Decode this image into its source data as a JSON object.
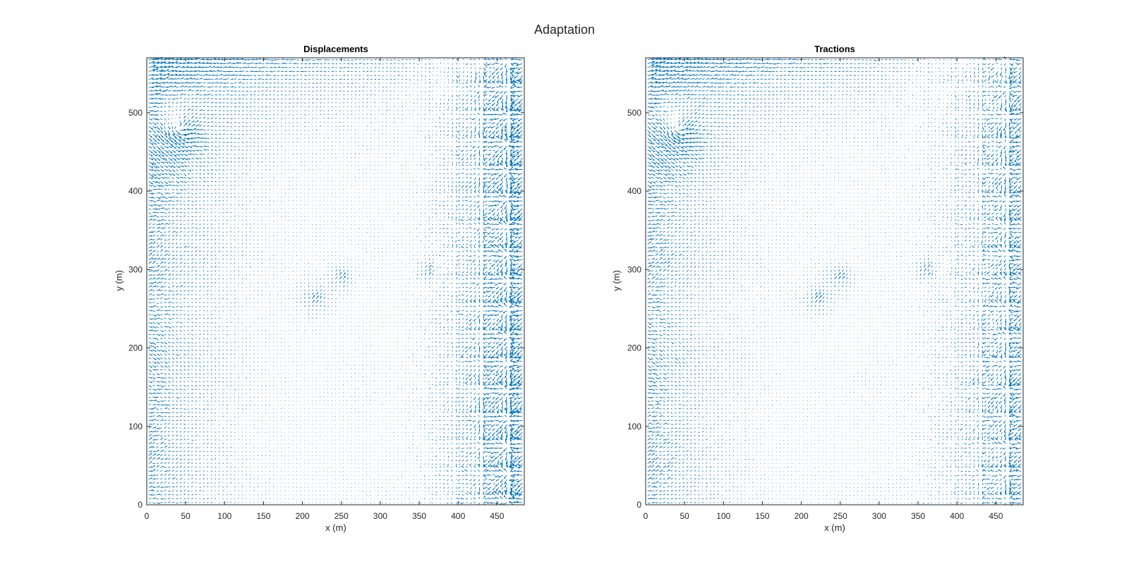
{
  "figure": {
    "title": "Adaptation"
  },
  "chart_data": [
    {
      "type": "quiver",
      "title": "Displacements",
      "xlabel": "x (m)",
      "ylabel": "y (m)",
      "xlim": [
        0,
        485
      ],
      "ylim": [
        0,
        570
      ],
      "xticks": [
        0,
        50,
        100,
        150,
        200,
        250,
        300,
        350,
        400,
        450
      ],
      "yticks": [
        0,
        100,
        200,
        300,
        400,
        500
      ],
      "grid": false,
      "color": "#0072BD",
      "grid_spacing": 5,
      "features": [
        {
          "kind": "left_band_flow"
        },
        {
          "kind": "top_band_flow"
        },
        {
          "kind": "right_region_radial_clusters"
        },
        {
          "kind": "vortex",
          "center": [
            40,
            480
          ]
        },
        {
          "kind": "cluster",
          "center": [
            250,
            290
          ]
        },
        {
          "kind": "cluster",
          "center": [
            215,
            262
          ]
        },
        {
          "kind": "cluster",
          "center": [
            360,
            300
          ]
        }
      ]
    },
    {
      "type": "quiver",
      "title": "Tractions",
      "xlabel": "x (m)",
      "ylabel": "y (m)",
      "xlim": [
        0,
        485
      ],
      "ylim": [
        0,
        570
      ],
      "xticks": [
        0,
        50,
        100,
        150,
        200,
        250,
        300,
        350,
        400,
        450
      ],
      "yticks": [
        0,
        100,
        200,
        300,
        400,
        500
      ],
      "grid": false,
      "color": "#0072BD",
      "grid_spacing": 5,
      "features": [
        {
          "kind": "left_band_flow"
        },
        {
          "kind": "top_band_flow"
        },
        {
          "kind": "right_region_radial_clusters"
        },
        {
          "kind": "vortex",
          "center": [
            40,
            480
          ]
        },
        {
          "kind": "cluster",
          "center": [
            250,
            290
          ]
        },
        {
          "kind": "cluster",
          "center": [
            220,
            262
          ]
        },
        {
          "kind": "cluster",
          "center": [
            360,
            300
          ]
        }
      ]
    }
  ]
}
